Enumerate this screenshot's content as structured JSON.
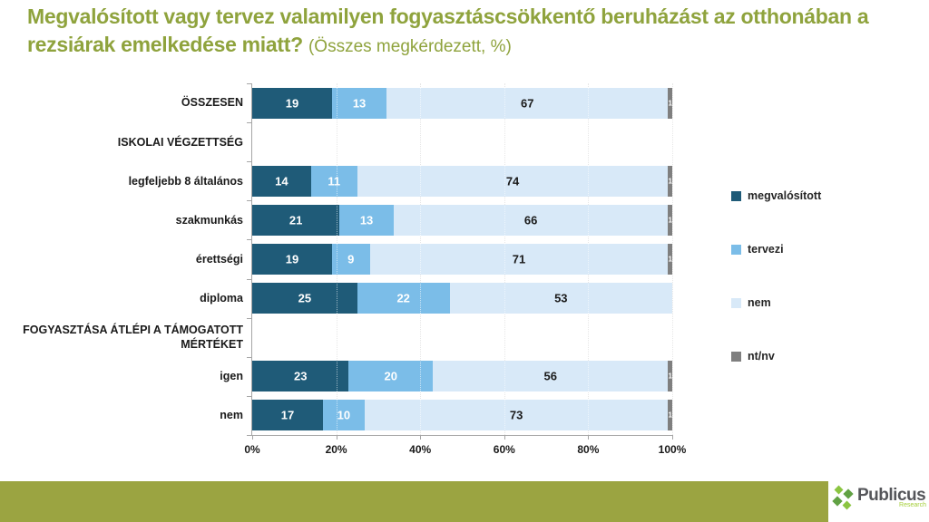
{
  "title": {
    "main": "Megvalósított vagy tervez valamilyen fogyasztáscsökkentő beruházást az otthonában a rezsiárak emelkedése miatt?",
    "subtitle": "(Összes megkérdezett, %)"
  },
  "colors": {
    "title_green": "#8FA33D",
    "footer_green": "#9BA441",
    "megvalositott": "#1F5B78",
    "tervezi": "#7BBDE8",
    "nem": "#D8E9F8",
    "ntnv": "#7F7F7F",
    "axis_gray": "#A6A6A6"
  },
  "chart_data": {
    "type": "bar",
    "orientation": "horizontal",
    "stacked": true,
    "normalized_to_100": true,
    "title": "Megvalósított vagy tervez valamilyen fogyasztáscsökkentő beruházást az otthonában a rezsiárak emelkedése miatt?",
    "subtitle": "(Összes megkérdezett, %)",
    "xlim": [
      0,
      100
    ],
    "x_ticks": [
      "0%",
      "20%",
      "40%",
      "60%",
      "80%",
      "100%"
    ],
    "grid": true,
    "legend_position": "right",
    "series": [
      {
        "name": "megvalósított",
        "color": "#1F5B78",
        "label_color": "#FFFFFF"
      },
      {
        "name": "tervezi",
        "color": "#7BBDE8",
        "label_color": "#FFFFFF"
      },
      {
        "name": "nem",
        "color": "#D8E9F8",
        "label_color": "#1A1A1A"
      },
      {
        "name": "nt/nv",
        "color": "#7F7F7F",
        "label_color": "#FFFFFF"
      }
    ],
    "rows": [
      {
        "label": "ÖSSZESEN",
        "header": false,
        "values": [
          19,
          13,
          67,
          1
        ]
      },
      {
        "label": "ISKOLAI VÉGZETTSÉG",
        "header": true,
        "values": []
      },
      {
        "label": "legfeljebb 8 általános",
        "header": false,
        "values": [
          14,
          11,
          74,
          1
        ]
      },
      {
        "label": "szakmunkás",
        "header": false,
        "values": [
          21,
          13,
          66,
          1
        ]
      },
      {
        "label": "érettségi",
        "header": false,
        "values": [
          19,
          9,
          71,
          1
        ]
      },
      {
        "label": "diploma",
        "header": false,
        "values": [
          25,
          22,
          53,
          0
        ]
      },
      {
        "label": "FOGYASZTÁSA ÁTLÉPI A TÁMOGATOTT MÉRTÉKET",
        "header": true,
        "values": []
      },
      {
        "label": "igen",
        "header": false,
        "values": [
          23,
          20,
          56,
          1
        ]
      },
      {
        "label": "nem",
        "header": false,
        "values": [
          17,
          10,
          73,
          1
        ]
      }
    ]
  },
  "footer": {
    "brand": "Publicus",
    "brand_sub": "Research"
  }
}
